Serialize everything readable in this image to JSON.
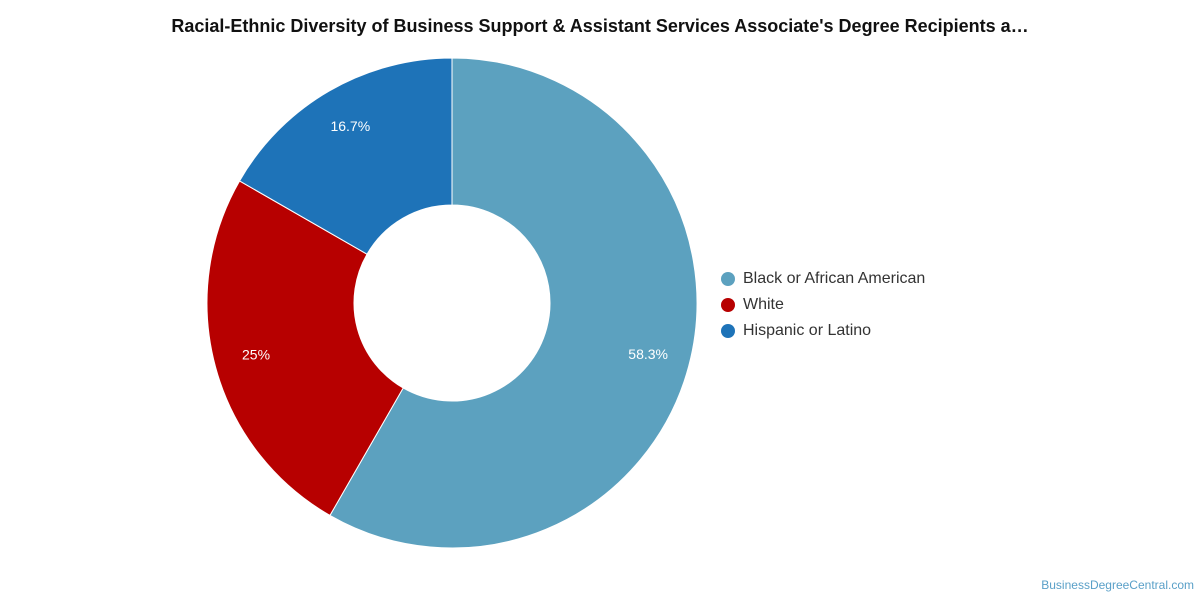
{
  "chart_data": {
    "type": "pie",
    "title": "Racial-Ethnic Diversity of Business Support & Assistant Services Associate's Degree Recipients a…",
    "categories": [
      "Black or African American",
      "White",
      "Hispanic or Latino"
    ],
    "values": [
      58.3,
      25,
      16.7
    ],
    "value_labels": [
      "58.3%",
      "25%",
      "16.7%"
    ],
    "colors": [
      "#5ca1bf",
      "#b70000",
      "#1e73b8"
    ],
    "donut": true,
    "legend_position": "right"
  },
  "credit": "BusinessDegreeCentral.com"
}
